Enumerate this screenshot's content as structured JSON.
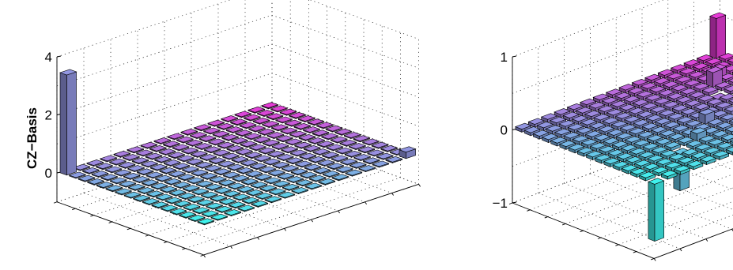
{
  "figure": {
    "ylabel": "CZ−Basis"
  },
  "chart_data": [
    {
      "type": "bar3d",
      "title": "",
      "xlabel": "",
      "ylabel": "CZ−Basis",
      "zlim": [
        -1,
        4
      ],
      "zticks": [
        "0",
        "2",
        "4"
      ],
      "grid": true,
      "rows": 16,
      "cols": 16,
      "color_low": "#3ff2ec",
      "color_high": "#e53ad5",
      "default_value": 0.03,
      "peaks": [
        {
          "row": 0,
          "col": 0,
          "value": 3.45
        },
        {
          "row": 15,
          "col": 15,
          "value": 0.22
        }
      ]
    },
    {
      "type": "bar3d",
      "title": "",
      "xlabel": "",
      "ylabel": "",
      "zlim": [
        -1,
        1
      ],
      "zticks": [
        "−1",
        "0",
        "1"
      ],
      "grid": true,
      "rows": 16,
      "cols": 16,
      "color_low": "#3ff2ec",
      "color_high": "#e53ad5",
      "default_value": 0.04,
      "peaks": [
        {
          "row": 0,
          "col": 15,
          "value": 0.55
        },
        {
          "row": 15,
          "col": 0,
          "value": -0.78
        },
        {
          "row": 4,
          "col": 12,
          "value": 0.2
        },
        {
          "row": 3,
          "col": 13,
          "value": 0.12
        },
        {
          "row": 6,
          "col": 11,
          "value": -0.18
        },
        {
          "row": 9,
          "col": 8,
          "value": 0.13
        },
        {
          "row": 12,
          "col": 4,
          "value": -0.5
        },
        {
          "row": 11,
          "col": 6,
          "value": 0.1
        }
      ]
    }
  ]
}
